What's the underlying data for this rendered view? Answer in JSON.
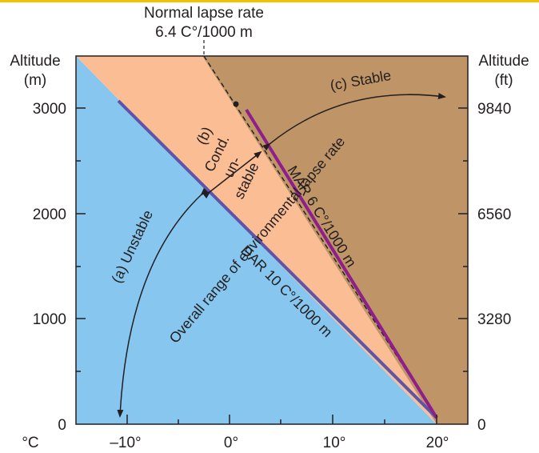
{
  "header": {
    "line1": "Normal lapse rate",
    "line2": "6.4 C°/1000 m"
  },
  "axes": {
    "left_title_line1": "Altitude",
    "left_title_line2": "(m)",
    "right_title_line1": "Altitude",
    "right_title_line2": "(ft)",
    "x_unit": "°C",
    "left_ticks": [
      "3000",
      "2000",
      "1000",
      "0"
    ],
    "right_ticks": [
      "9840",
      "6560",
      "3280",
      "0"
    ],
    "x_ticks": [
      "–10°",
      "0°",
      "10°",
      "20°"
    ]
  },
  "regions": {
    "unstable": "(a) Unstable",
    "cond_b": "(b)",
    "cond_1": "Cond.",
    "cond_2": "un-",
    "cond_3": "stable",
    "stable": "(c) Stable"
  },
  "lines": {
    "dar": "DAR 10 C°/1000 m",
    "mar": "MAR 6 C°/1000 m",
    "overall": "Overall range of environmental lapse rate"
  },
  "colors": {
    "unstable": "#87c7ef",
    "conditional": "#fbbd94",
    "stable": "#bf9466",
    "dar_line": "#5e55a8",
    "mar_line": "#8e1e8c",
    "accent_bar": "#f2c200"
  },
  "chart_data": {
    "type": "diagram",
    "title": "Normal lapse rate 6.4 C°/1000 m",
    "xlabel": "°C",
    "ylabel": "Altitude (m)",
    "y2label": "Altitude (ft)",
    "xlim": [
      -14,
      23
    ],
    "ylim": [
      0,
      3500
    ],
    "x_ticks": [
      -10,
      0,
      10,
      20
    ],
    "y_ticks_m": [
      0,
      1000,
      2000,
      3000
    ],
    "y_ticks_ft": [
      0,
      3280,
      6560,
      9840
    ],
    "series": [
      {
        "name": "DAR 10 C°/1000 m",
        "x": [
          20,
          -10
        ],
        "y": [
          0,
          3000
        ]
      },
      {
        "name": "MAR 6 C°/1000 m",
        "x": [
          20,
          2
        ],
        "y": [
          0,
          3000
        ]
      },
      {
        "name": "Normal lapse rate 6.4 C°/1000 m",
        "x": [
          20,
          -2.4
        ],
        "y": [
          0,
          3500
        ]
      }
    ],
    "regions": [
      "(a) Unstable",
      "(b) Cond. unstable",
      "(c) Stable"
    ]
  }
}
